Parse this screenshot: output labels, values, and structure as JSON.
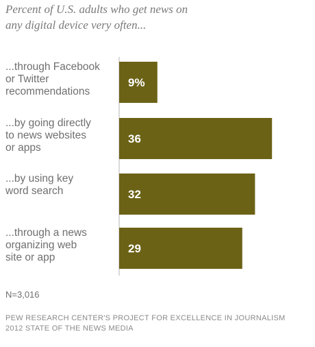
{
  "header": {
    "subtitle": "Percent of U.S. adults who get news on\nany digital device very often..."
  },
  "chart_data": {
    "type": "bar",
    "orientation": "horizontal",
    "categories": [
      [
        "...through Facebook",
        "or Twitter",
        "recommendations"
      ],
      [
        "...by going directly",
        "to news websites",
        "or apps"
      ],
      [
        "...by using key",
        "word search"
      ],
      [
        "...through a news",
        "organizing web",
        "site or app"
      ]
    ],
    "values": [
      9,
      36,
      32,
      29
    ],
    "value_labels": [
      "9%",
      "36",
      "32",
      "29"
    ],
    "bar_color": "#6b6216",
    "axis_color": "#b5b5b5"
  },
  "footer": {
    "sample_size": "N=3,016",
    "source_line1": "PEW RESEARCH CENTER'S PROJECT FOR EXCELLENCE IN JOURNALISM",
    "source_line2": "2012 STATE OF THE NEWS MEDIA"
  }
}
